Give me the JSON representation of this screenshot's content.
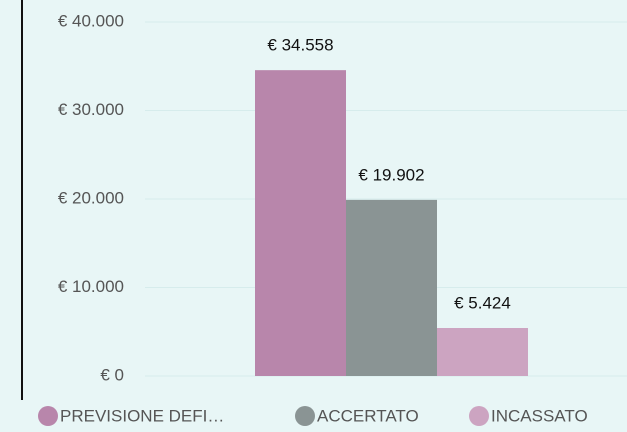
{
  "chart_data": {
    "type": "bar",
    "categories": [
      null
    ],
    "series": [
      {
        "name": "PREVISIONE DEFI…",
        "color": "#b886ab",
        "values": [
          34558
        ],
        "value_labels": [
          "€ 34.558"
        ]
      },
      {
        "name": "ACCERTATO",
        "color": "#8a9494",
        "values": [
          19902
        ],
        "value_labels": [
          "€ 19.902"
        ]
      },
      {
        "name": "INCASSATO",
        "color": "#cca4c1",
        "values": [
          5424
        ],
        "value_labels": [
          "€ 5.424"
        ]
      }
    ],
    "ylim": [
      0,
      40000
    ],
    "yticks": [
      {
        "value": 0,
        "label": "€ 0"
      },
      {
        "value": 10000,
        "label": "€ 10.000"
      },
      {
        "value": 20000,
        "label": "€ 20.000"
      },
      {
        "value": 30000,
        "label": "€ 30.000"
      },
      {
        "value": 40000,
        "label": "€ 40.000"
      }
    ],
    "grid": true,
    "legend": "bottom"
  }
}
